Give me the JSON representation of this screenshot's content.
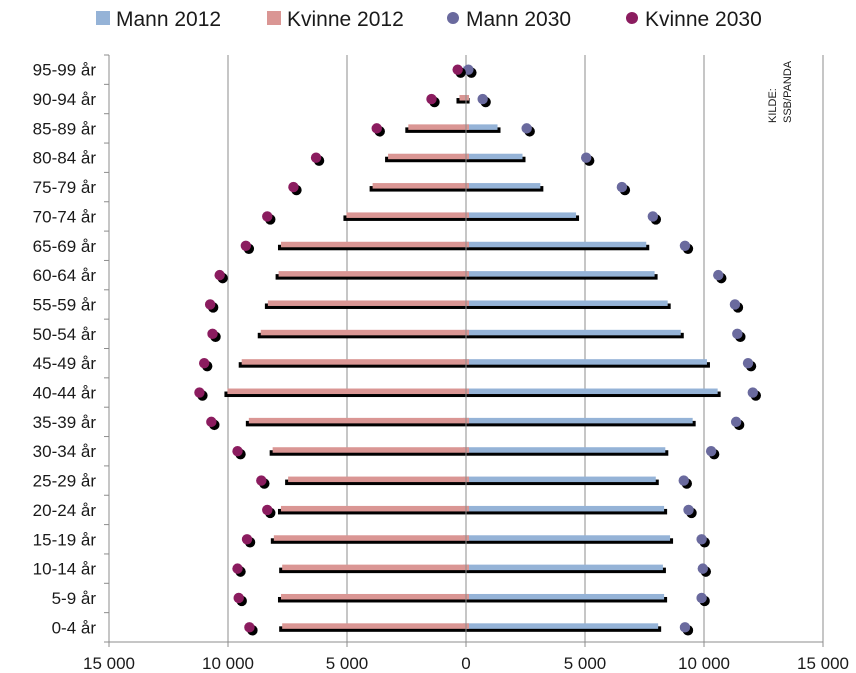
{
  "chart_data": {
    "type": "bar",
    "orientation": "horizontal",
    "subtype": "population-pyramid",
    "categories": [
      "0-4 år",
      "5-9 år",
      "10-14 år",
      "15-19 år",
      "20-24 år",
      "25-29 år",
      "30-34 år",
      "35-39 år",
      "40-44 år",
      "45-49 år",
      "50-54 år",
      "55-59 år",
      "60-64 år",
      "65-69 år",
      "70-74 år",
      "75-79 år",
      "80-84 år",
      "85-89 år",
      "90-94 år",
      "95-99 år"
    ],
    "series": [
      {
        "name": "Mann 2012",
        "kind": "bar",
        "side": "right",
        "color": "#95B3D7",
        "values": [
          8200,
          8450,
          8400,
          8700,
          8450,
          8100,
          8500,
          9650,
          10700,
          10250,
          9150,
          8600,
          8050,
          7700,
          4750,
          3250,
          2500,
          1450,
          150,
          20
        ]
      },
      {
        "name": "Kvinne 2012",
        "kind": "bar",
        "side": "left",
        "color": "#DA9694",
        "values": [
          7850,
          7900,
          7850,
          8200,
          7900,
          7600,
          8250,
          9250,
          10150,
          9550,
          8750,
          8450,
          8000,
          7900,
          5150,
          4050,
          3400,
          2550,
          400,
          40
        ]
      },
      {
        "name": "Mann 2030",
        "kind": "marker",
        "side": "right",
        "color": "#6A6A9E",
        "values": [
          9200,
          9900,
          9950,
          9900,
          9350,
          9150,
          10300,
          11350,
          12050,
          11850,
          11400,
          11300,
          10600,
          9200,
          7850,
          6550,
          5050,
          2550,
          700,
          100
        ]
      },
      {
        "name": "Kvinne 2030",
        "kind": "marker",
        "side": "left",
        "color": "#8B1C5F",
        "values": [
          9100,
          9550,
          9600,
          9200,
          8350,
          8600,
          9600,
          10700,
          11200,
          11000,
          10650,
          10750,
          10350,
          9250,
          8350,
          7250,
          6300,
          3750,
          1450,
          350
        ]
      }
    ],
    "xlim": [
      -15000,
      15000
    ],
    "x_tick_values": [
      -15000,
      -10000,
      -5000,
      0,
      5000,
      10000,
      15000
    ],
    "x_tick_labels": [
      "15 000",
      "10 000",
      "5 000",
      "0",
      "5 000",
      "10 000",
      "15 000"
    ],
    "grid": "vertical",
    "legend_position": "top",
    "source_note_line1": "KILDE:",
    "source_note_line2": "SSB/PANDA"
  }
}
